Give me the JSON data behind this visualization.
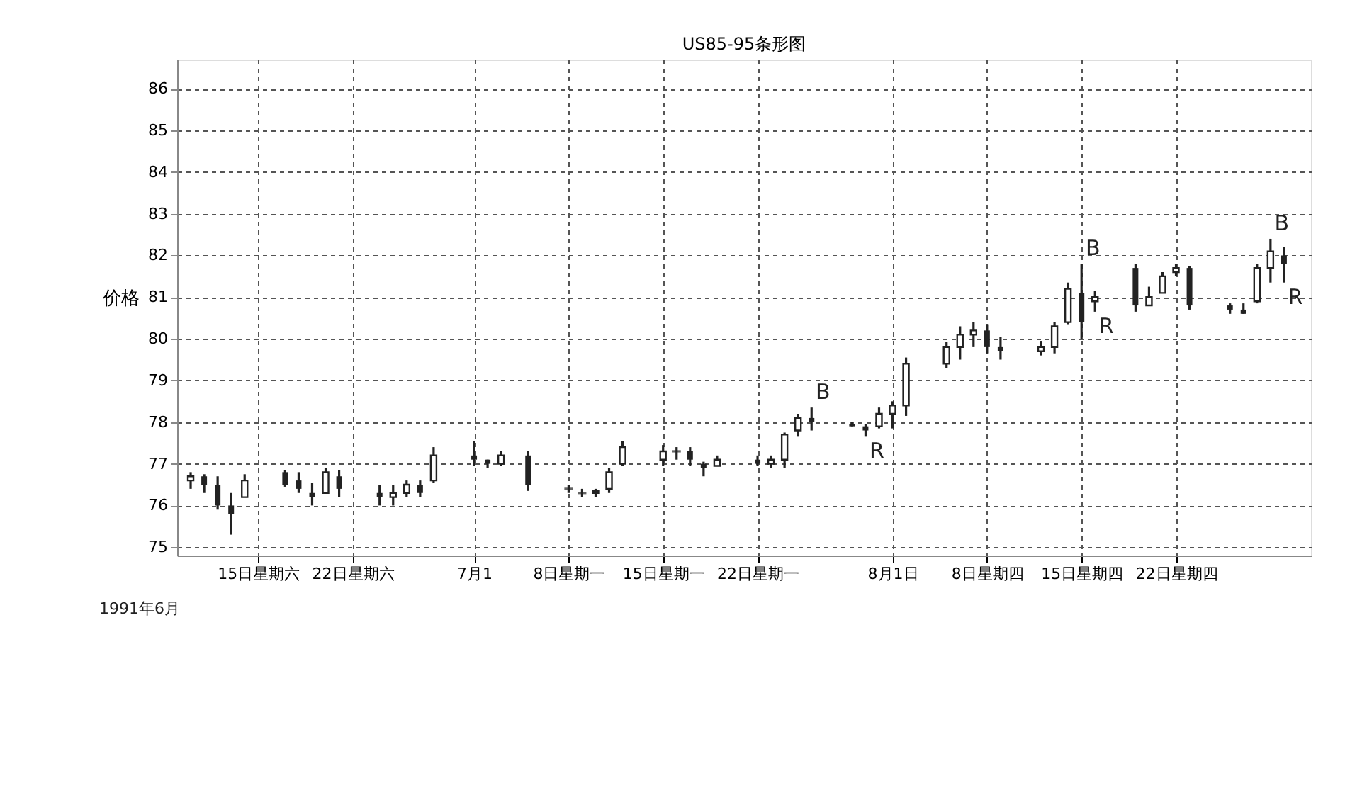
{
  "chart_data": {
    "type": "candlestick",
    "title": "US85-95条形图",
    "ylabel": "价格",
    "color": "#222222",
    "grid": true,
    "x": [
      "1991-06-10",
      "1991-06-11",
      "1991-06-12",
      "1991-06-13",
      "1991-06-14",
      "1991-06-17",
      "1991-06-18",
      "1991-06-19",
      "1991-06-20",
      "1991-06-21",
      "1991-06-24",
      "1991-06-25",
      "1991-06-26",
      "1991-06-27",
      "1991-06-28",
      "1991-07-01",
      "1991-07-02",
      "1991-07-03",
      "1991-07-05",
      "1991-07-08",
      "1991-07-09",
      "1991-07-10",
      "1991-07-11",
      "1991-07-12",
      "1991-07-15",
      "1991-07-16",
      "1991-07-17",
      "1991-07-18",
      "1991-07-19",
      "1991-07-22",
      "1991-07-23",
      "1991-07-24",
      "1991-07-25",
      "1991-07-26",
      "1991-07-29",
      "1991-07-30",
      "1991-07-31",
      "1991-08-01",
      "1991-08-02",
      "1991-08-05",
      "1991-08-06",
      "1991-08-07",
      "1991-08-08",
      "1991-08-09",
      "1991-08-12",
      "1991-08-13",
      "1991-08-14",
      "1991-08-15",
      "1991-08-16",
      "1991-08-19",
      "1991-08-20",
      "1991-08-21",
      "1991-08-22",
      "1991-08-23",
      "1991-08-26",
      "1991-08-27",
      "1991-08-28",
      "1991-08-29",
      "1991-08-30"
    ],
    "ohlc": [
      [
        76.6,
        76.8,
        76.4,
        76.7
      ],
      [
        76.7,
        76.75,
        76.3,
        76.5
      ],
      [
        76.5,
        76.7,
        75.9,
        76.0
      ],
      [
        76.0,
        76.3,
        75.3,
        75.8
      ],
      [
        76.2,
        76.75,
        76.2,
        76.6
      ],
      [
        76.8,
        76.85,
        76.45,
        76.5
      ],
      [
        76.6,
        76.8,
        76.3,
        76.4
      ],
      [
        76.3,
        76.55,
        76.0,
        76.2
      ],
      [
        76.3,
        76.9,
        76.3,
        76.8
      ],
      [
        76.7,
        76.85,
        76.2,
        76.4
      ],
      [
        76.3,
        76.5,
        76.0,
        76.2
      ],
      [
        76.2,
        76.5,
        76.0,
        76.3
      ],
      [
        76.3,
        76.6,
        76.2,
        76.5
      ],
      [
        76.5,
        76.6,
        76.2,
        76.3
      ],
      [
        76.6,
        77.4,
        76.55,
        77.2
      ],
      [
        77.2,
        77.55,
        76.95,
        77.1
      ],
      [
        77.1,
        77.1,
        76.9,
        77.0
      ],
      [
        77.0,
        77.3,
        76.95,
        77.2
      ],
      [
        77.2,
        77.3,
        76.35,
        76.5
      ],
      [
        76.4,
        76.5,
        76.3,
        76.4
      ],
      [
        76.3,
        76.4,
        76.2,
        76.3
      ],
      [
        76.3,
        76.4,
        76.2,
        76.35
      ],
      [
        76.4,
        76.9,
        76.3,
        76.8
      ],
      [
        77.0,
        77.55,
        76.95,
        77.4
      ],
      [
        77.1,
        77.45,
        76.95,
        77.3
      ],
      [
        77.3,
        77.4,
        77.1,
        77.3
      ],
      [
        77.3,
        77.4,
        76.95,
        77.1
      ],
      [
        77.0,
        77.05,
        76.7,
        76.9
      ],
      [
        76.95,
        77.2,
        76.95,
        77.1
      ],
      [
        77.1,
        77.2,
        76.95,
        77.0
      ],
      [
        77.0,
        77.2,
        76.9,
        77.1
      ],
      [
        77.1,
        77.75,
        76.9,
        77.7
      ],
      [
        77.8,
        78.2,
        77.65,
        78.1
      ],
      [
        78.1,
        78.35,
        77.8,
        78.0
      ],
      [
        77.95,
        78.0,
        77.9,
        77.9
      ],
      [
        77.9,
        77.95,
        77.65,
        77.8
      ],
      [
        77.9,
        78.35,
        77.85,
        78.2
      ],
      [
        78.2,
        78.5,
        77.85,
        78.4
      ],
      [
        78.4,
        79.55,
        78.15,
        79.4
      ],
      [
        79.4,
        79.93,
        79.3,
        79.8
      ],
      [
        79.8,
        80.3,
        79.5,
        80.1
      ],
      [
        80.1,
        80.4,
        79.8,
        80.2
      ],
      [
        80.2,
        80.35,
        79.65,
        79.8
      ],
      [
        79.8,
        80.05,
        79.5,
        79.7
      ],
      [
        79.7,
        79.95,
        79.6,
        79.8
      ],
      [
        79.8,
        80.4,
        79.65,
        80.3
      ],
      [
        80.4,
        81.35,
        80.35,
        81.2
      ],
      [
        81.1,
        81.8,
        80.0,
        80.4
      ],
      [
        80.9,
        81.15,
        80.65,
        81.0
      ],
      [
        81.7,
        81.8,
        80.65,
        80.8
      ],
      [
        80.8,
        81.25,
        80.8,
        81.0
      ],
      [
        81.1,
        81.6,
        81.1,
        81.5
      ],
      [
        81.6,
        81.8,
        81.5,
        81.7
      ],
      [
        81.7,
        81.75,
        80.7,
        80.8
      ],
      [
        80.8,
        80.85,
        80.6,
        80.7
      ],
      [
        80.7,
        80.85,
        80.6,
        80.6
      ],
      [
        80.9,
        81.8,
        80.85,
        81.7
      ],
      [
        81.7,
        82.4,
        81.35,
        82.1
      ],
      [
        82.0,
        82.2,
        81.35,
        81.8
      ]
    ],
    "xlim": [
      "1991-06-09",
      "1991-09-01"
    ],
    "xticks": [
      {
        "value": "1991-06-15",
        "label": "15日星期六"
      },
      {
        "value": "1991-06-22",
        "label": "22日星期六"
      },
      {
        "value": "1991-07-01",
        "label": "7月1"
      },
      {
        "value": "1991-07-08",
        "label": "8日星期一"
      },
      {
        "value": "1991-07-15",
        "label": "15日星期一"
      },
      {
        "value": "1991-07-22",
        "label": "22日星期一"
      },
      {
        "value": "1991-08-01",
        "label": "8月1日"
      },
      {
        "value": "1991-08-08",
        "label": "8日星期四"
      },
      {
        "value": "1991-08-15",
        "label": "15日星期四"
      },
      {
        "value": "1991-08-22",
        "label": "22日星期四"
      }
    ],
    "ylim": [
      74.8,
      86.7
    ],
    "yticks": [
      75,
      76,
      77,
      78,
      79,
      80,
      81,
      82,
      83,
      84,
      85,
      86
    ],
    "annotations": [
      {
        "text": "B",
        "x": "1991-07-26",
        "y": 78.35
      },
      {
        "text": "R",
        "x": "1991-07-30",
        "y": 77.65
      },
      {
        "text": "B",
        "x": "1991-08-15",
        "y": 81.8
      },
      {
        "text": "R",
        "x": "1991-08-16",
        "y": 80.65
      },
      {
        "text": "B",
        "x": "1991-08-29",
        "y": 82.4
      },
      {
        "text": "R",
        "x": "1991-08-30",
        "y": 81.35
      },
      "1991年6月"
    ]
  }
}
